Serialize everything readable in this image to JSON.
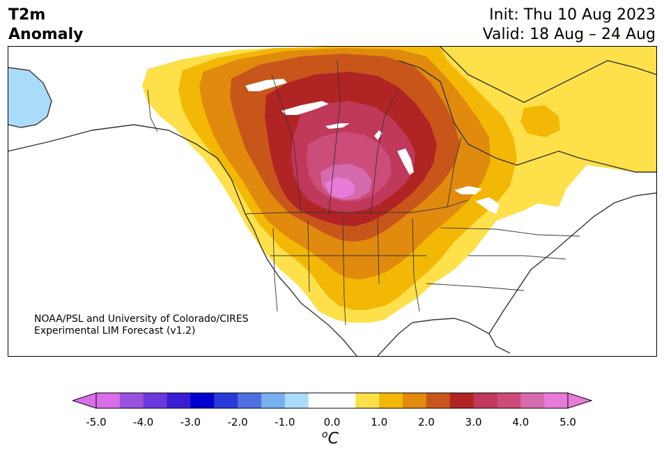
{
  "title": {
    "variable_line1": "T2m",
    "variable_line2": "Anomaly",
    "init": "Init: Thu 10 Aug 2023",
    "valid": "Valid: 18 Aug – 24 Aug"
  },
  "credit": {
    "line1": "NOAA/PSL and University of Colorado/CIRES",
    "line2": "Experimental LIM Forecast (v1.2)"
  },
  "map": {
    "region": "North America",
    "projection": "Lambert conformal (approx.)",
    "features": [
      "coastlines",
      "country-borders",
      "us-state-borders",
      "canada-province-borders",
      "lakes"
    ],
    "anomaly_pattern": {
      "peak_center": "Montana / Alberta / Saskatchewan",
      "peak_value_range": "+4.5 to +5.0",
      "cold_region": "western Alaska coast",
      "near_normal_region": "eastern United States and western Canada/Alaska interior"
    }
  },
  "colorbar": {
    "colors": [
      "#d86ee8",
      "#9a52e0",
      "#6a38dc",
      "#3a1ed4",
      "#0000cc",
      "#2a3ad8",
      "#4f6ee0",
      "#78b0ee",
      "#aadcfa",
      "#ffffff",
      "#ffffff",
      "#fde04a",
      "#f2b805",
      "#e08a0e",
      "#c8561a",
      "#b02424",
      "#c0385a",
      "#cc4c7a",
      "#d66aae",
      "#e87ad8"
    ],
    "min_extend_color": "#d86ee8",
    "max_extend_color": "#e87ad8",
    "tick_labels": [
      "-5.0",
      "-4.0",
      "-3.0",
      "-2.0",
      "-1.0",
      "0.0",
      "1.0",
      "2.0",
      "3.0",
      "4.0",
      "5.0"
    ],
    "unit_base": "C",
    "unit_superscript": "o"
  }
}
